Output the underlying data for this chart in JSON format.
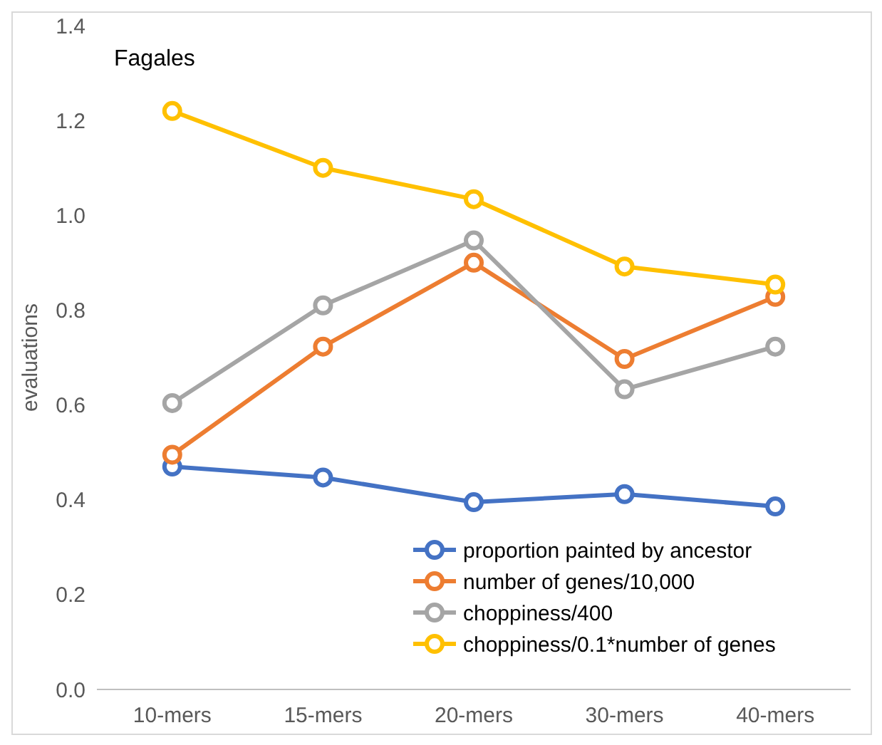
{
  "chart_data": {
    "type": "line",
    "title": "Fagales",
    "ylabel": "evaluations",
    "categories": [
      "10-mers",
      "15-mers",
      "20-mers",
      "30-mers",
      "40-mers"
    ],
    "series": [
      {
        "name": "proportion painted by ancestor",
        "color": "#4472c4",
        "values": [
          0.47,
          0.447,
          0.395,
          0.412,
          0.386
        ]
      },
      {
        "name": "number of genes/10,000",
        "color": "#ed7d31",
        "values": [
          0.495,
          0.723,
          0.9,
          0.697,
          0.828
        ]
      },
      {
        "name": "choppiness/400",
        "color": "#a5a5a5",
        "values": [
          0.604,
          0.81,
          0.947,
          0.633,
          0.723
        ]
      },
      {
        "name": "choppiness/0.1*number of genes",
        "color": "#ffc000",
        "values": [
          1.22,
          1.1,
          1.034,
          0.892,
          0.854
        ]
      }
    ],
    "ylim": [
      0,
      1.4
    ],
    "yticks": [
      {
        "value": 0,
        "label": "0.0"
      },
      0.2,
      0.4,
      0.6,
      0.8,
      {
        "value": 1,
        "label": "1.0"
      },
      1.2,
      1.4
    ],
    "grid": false,
    "legend": "bottom right",
    "marker": "circle",
    "line_style": "solid"
  }
}
